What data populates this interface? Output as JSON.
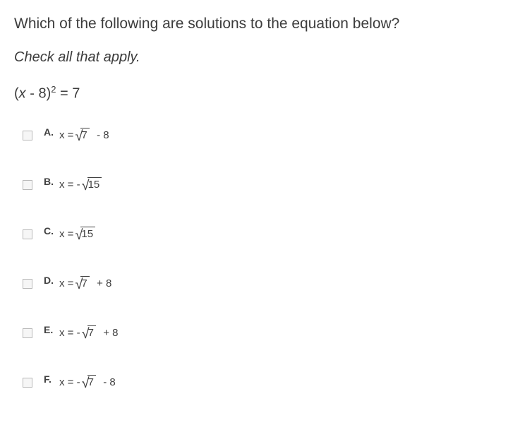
{
  "question": "Which of the following are solutions to the equation below?",
  "instruction": "Check all that apply.",
  "equation": {
    "lhs_var": "x",
    "lhs_const": "- 8",
    "exponent": "2",
    "rhs": "7"
  },
  "options": [
    {
      "letter": "A.",
      "prefix": "x = ",
      "rad": "7",
      "suffix": "  - 8"
    },
    {
      "letter": "B.",
      "prefix": "x = - ",
      "rad": "15",
      "suffix": ""
    },
    {
      "letter": "C.",
      "prefix": "x = ",
      "rad": "15",
      "suffix": ""
    },
    {
      "letter": "D.",
      "prefix": "x = ",
      "rad": "7",
      "suffix": "  + 8"
    },
    {
      "letter": "E.",
      "prefix": "x = - ",
      "rad": "7",
      "suffix": "  + 8"
    },
    {
      "letter": "F.",
      "prefix": "x = - ",
      "rad": "7",
      "suffix": "  - 8"
    }
  ]
}
